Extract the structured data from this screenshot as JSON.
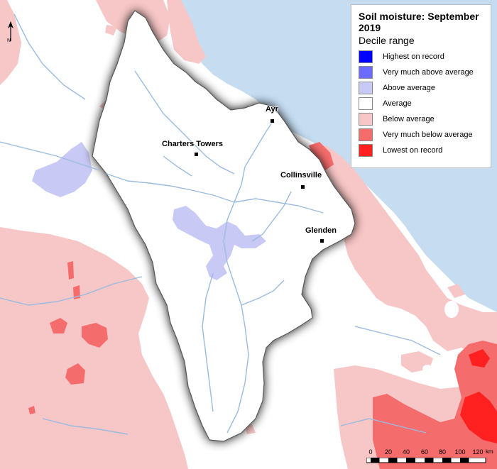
{
  "legend": {
    "title": "Soil moisture: September 2019",
    "subtitle": "Decile range",
    "items": [
      {
        "label": "Highest on record",
        "color": "#0000ff"
      },
      {
        "label": "Very much above average",
        "color": "#6b6bff"
      },
      {
        "label": "Above average",
        "color": "#c9c9f5"
      },
      {
        "label": "Average",
        "color": "#ffffff"
      },
      {
        "label": "Below average",
        "color": "#f7c6c6"
      },
      {
        "label": "Very much below average",
        "color": "#f56c6c"
      },
      {
        "label": "Lowest on record",
        "color": "#ff2020"
      }
    ]
  },
  "towns": [
    {
      "name": "Ayr"
    },
    {
      "name": "Charters Towers"
    },
    {
      "name": "Collinsville"
    },
    {
      "name": "Glenden"
    }
  ],
  "north_arrow": {
    "label": "N"
  },
  "scale": {
    "ticks": [
      "0",
      "20",
      "40",
      "60",
      "80",
      "100",
      "120"
    ],
    "unit": "km"
  },
  "colors": {
    "sea": "#c5dcf1",
    "river": "#9bbbe0",
    "land_outside": "#ffffff"
  }
}
